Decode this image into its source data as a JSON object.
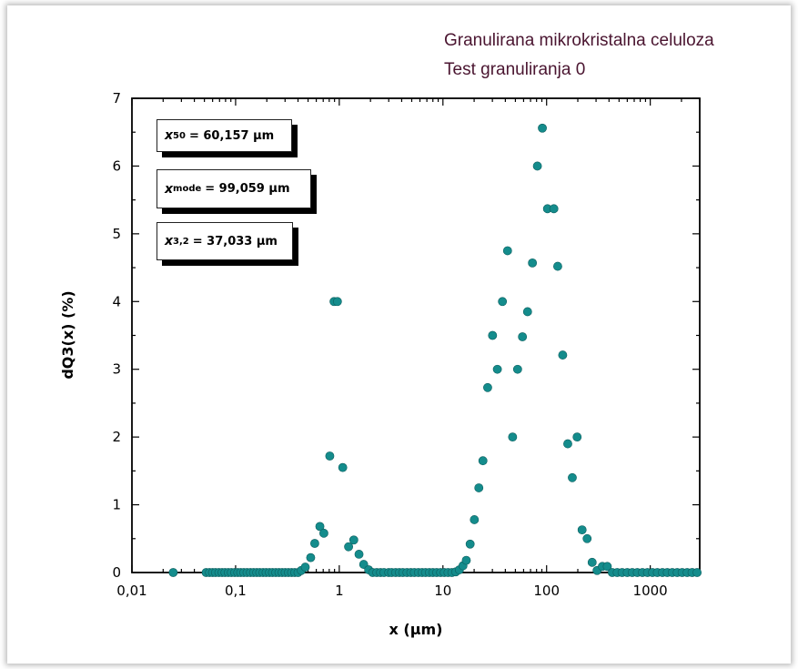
{
  "header": {
    "title_line1": "Granulirana mikrokristalna celuloza",
    "title_line2": "Test granuliranja 0"
  },
  "stats": [
    {
      "var": "x",
      "sub": "50",
      "value": "= 60,157 μm"
    },
    {
      "var": "x",
      "sub": "mode",
      "value": "= 99,059 μm"
    },
    {
      "var": "x",
      "sub": "3,2",
      "value": "= 37,033 μm"
    }
  ],
  "chart_data": {
    "type": "scatter",
    "xlabel": "x (μm)",
    "ylabel": "dQ3(x) (%)",
    "x_scale": "log",
    "xlim": [
      0.01,
      3000
    ],
    "ylim": [
      0,
      7
    ],
    "x_tick_labels": [
      "0,01",
      "0,1",
      "1",
      "10",
      "100",
      "1000"
    ],
    "y_tick_labels": [
      "0",
      "1",
      "2",
      "3",
      "4",
      "5",
      "6",
      "7"
    ],
    "marker_color": "#148c8c",
    "grid": false,
    "series": [
      {
        "points": [
          [
            0.025,
            0.0
          ],
          [
            0.052,
            0.0
          ],
          [
            0.056,
            0.0
          ],
          [
            0.06,
            0.0
          ],
          [
            0.064,
            0.0
          ],
          [
            0.069,
            0.0
          ],
          [
            0.074,
            0.0
          ],
          [
            0.079,
            0.0
          ],
          [
            0.085,
            0.0
          ],
          [
            0.091,
            0.0
          ],
          [
            0.098,
            0.0
          ],
          [
            0.105,
            0.0
          ],
          [
            0.112,
            0.0
          ],
          [
            0.12,
            0.0
          ],
          [
            0.129,
            0.0
          ],
          [
            0.139,
            0.0
          ],
          [
            0.149,
            0.0
          ],
          [
            0.16,
            0.0
          ],
          [
            0.171,
            0.0
          ],
          [
            0.184,
            0.0
          ],
          [
            0.197,
            0.0
          ],
          [
            0.212,
            0.0
          ],
          [
            0.227,
            0.0
          ],
          [
            0.244,
            0.0
          ],
          [
            0.262,
            0.0
          ],
          [
            0.281,
            0.0
          ],
          [
            0.301,
            0.0
          ],
          [
            0.323,
            0.0
          ],
          [
            0.347,
            0.0
          ],
          [
            0.372,
            0.0
          ],
          [
            0.4,
            0.0
          ],
          [
            0.43,
            0.03
          ],
          [
            0.47,
            0.08
          ],
          [
            0.53,
            0.22
          ],
          [
            0.58,
            0.43
          ],
          [
            0.65,
            0.68
          ],
          [
            0.71,
            0.58
          ],
          [
            0.81,
            1.72
          ],
          [
            0.89,
            4.0
          ],
          [
            0.96,
            4.0
          ],
          [
            1.08,
            1.55
          ],
          [
            1.23,
            0.38
          ],
          [
            1.38,
            0.48
          ],
          [
            1.55,
            0.27
          ],
          [
            1.72,
            0.12
          ],
          [
            1.92,
            0.04
          ],
          [
            2.1,
            0.0
          ],
          [
            2.3,
            0.0
          ],
          [
            2.5,
            0.0
          ],
          [
            2.7,
            0.0
          ],
          [
            3.0,
            0.0
          ],
          [
            3.2,
            0.0
          ],
          [
            3.5,
            0.0
          ],
          [
            3.8,
            0.0
          ],
          [
            4.1,
            0.0
          ],
          [
            4.5,
            0.0
          ],
          [
            4.9,
            0.0
          ],
          [
            5.3,
            0.0
          ],
          [
            5.8,
            0.0
          ],
          [
            6.3,
            0.0
          ],
          [
            6.8,
            0.0
          ],
          [
            7.4,
            0.0
          ],
          [
            8.0,
            0.0
          ],
          [
            8.7,
            0.0
          ],
          [
            9.5,
            0.0
          ],
          [
            10.3,
            0.0
          ],
          [
            11.2,
            0.0
          ],
          [
            12.2,
            0.0
          ],
          [
            13.3,
            0.01
          ],
          [
            14.4,
            0.04
          ],
          [
            15.6,
            0.1
          ],
          [
            16.8,
            0.18
          ],
          [
            18.3,
            0.42
          ],
          [
            20.1,
            0.78
          ],
          [
            22.2,
            1.25
          ],
          [
            24.3,
            1.65
          ],
          [
            27.0,
            2.73
          ],
          [
            30.1,
            3.5
          ],
          [
            33.5,
            3.0
          ],
          [
            37.5,
            4.0
          ],
          [
            42.0,
            4.75
          ],
          [
            47.0,
            2.0
          ],
          [
            52.5,
            3.0
          ],
          [
            58.5,
            3.48
          ],
          [
            65.5,
            3.85
          ],
          [
            73.0,
            4.57
          ],
          [
            81.5,
            6.0
          ],
          [
            91.0,
            6.56
          ],
          [
            102.0,
            5.37
          ],
          [
            117.5,
            5.37
          ],
          [
            128.0,
            4.52
          ],
          [
            143.0,
            3.21
          ],
          [
            160.0,
            1.9
          ],
          [
            177.0,
            1.4
          ],
          [
            197.0,
            2.0
          ],
          [
            220.0,
            0.63
          ],
          [
            246.0,
            0.5
          ],
          [
            275.0,
            0.15
          ],
          [
            307.0,
            0.03
          ],
          [
            345.0,
            0.09
          ],
          [
            385.0,
            0.09
          ],
          [
            430.0,
            0.0
          ],
          [
            480.0,
            0.0
          ],
          [
            535.0,
            0.0
          ],
          [
            600.0,
            0.0
          ],
          [
            670.0,
            0.0
          ],
          [
            750.0,
            0.0
          ],
          [
            840.0,
            0.0
          ],
          [
            940.0,
            0.0
          ],
          [
            1050.0,
            0.0
          ],
          [
            1170.0,
            0.0
          ],
          [
            1310.0,
            0.0
          ],
          [
            1460.0,
            0.0
          ],
          [
            1630.0,
            0.0
          ],
          [
            1820.0,
            0.0
          ],
          [
            2030.0,
            0.0
          ],
          [
            2270.0,
            0.0
          ],
          [
            2530.0,
            0.0
          ],
          [
            2830.0,
            0.0
          ]
        ]
      }
    ]
  }
}
